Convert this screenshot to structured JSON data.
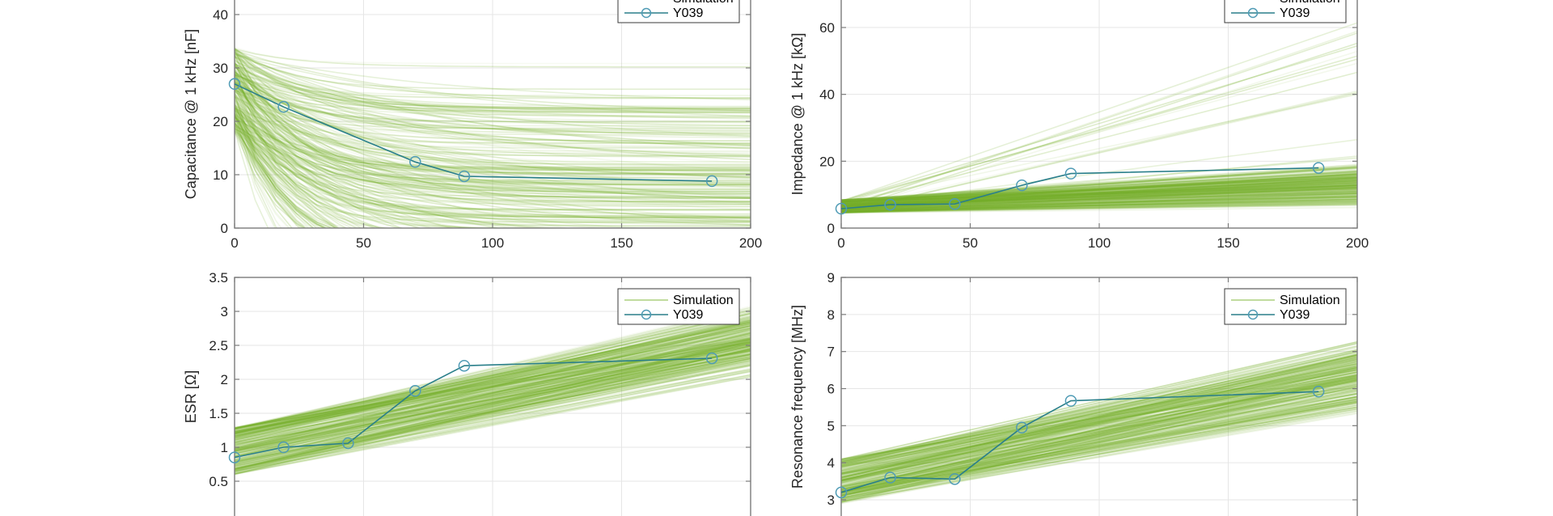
{
  "colors": {
    "simulation": "#77b02a",
    "measurement_line": "#2a7f8a",
    "measurement_marker": "#4f9bb5"
  },
  "legend": {
    "entries": [
      "Simulation",
      "Y039"
    ]
  },
  "chart_data": [
    {
      "id": "capacitance",
      "type": "line",
      "title": "",
      "xlabel": "",
      "ylabel": "Capacitance @ 1 kHz [nF]",
      "xlim": [
        0,
        200
      ],
      "ylim": [
        0,
        40
      ],
      "xticks": [
        0,
        50,
        100,
        150,
        200
      ],
      "yticks": [
        0,
        10,
        20,
        30,
        40
      ],
      "xtick_labels": [
        "0",
        "50",
        "100",
        "150",
        "200"
      ],
      "ytick_labels": [
        "0",
        "10",
        "20",
        "30",
        "40"
      ],
      "grid": true,
      "legend_position": "top-right",
      "simulation_band": {
        "start_range": [
          18,
          34
        ],
        "end_range": [
          -20,
          32
        ],
        "shape": "decay"
      },
      "series": [
        {
          "name": "Y039",
          "x": [
            0,
            19,
            70,
            89,
            185
          ],
          "y": [
            27,
            22.7,
            12.4,
            9.7,
            8.8
          ]
        }
      ]
    },
    {
      "id": "impedance",
      "type": "line",
      "title": "",
      "xlabel": "",
      "ylabel": "Impedance @ 1 kHz [kΩ]",
      "xlim": [
        0,
        200
      ],
      "ylim": [
        0,
        60
      ],
      "xticks": [
        0,
        50,
        100,
        150,
        200
      ],
      "yticks": [
        0,
        20,
        40,
        60
      ],
      "xtick_labels": [
        "0",
        "50",
        "100",
        "150",
        "200"
      ],
      "ytick_labels": [
        "0",
        "20",
        "40",
        "60"
      ],
      "grid": true,
      "legend_position": "top-right",
      "simulation_band": {
        "start_range": [
          4.5,
          8.5
        ],
        "end_range": [
          6,
          20
        ],
        "outlier_end_max": 62
      },
      "series": [
        {
          "name": "Y039",
          "x": [
            0,
            19,
            44,
            70,
            89,
            185
          ],
          "y": [
            5.8,
            7.0,
            7.2,
            12.8,
            16.3,
            18.0
          ]
        }
      ]
    },
    {
      "id": "esr",
      "type": "line",
      "title": "",
      "xlabel": "",
      "ylabel": "ESR [Ω]",
      "xlim": [
        0,
        200
      ],
      "ylim": [
        0.5,
        3.5
      ],
      "xticks": [
        0,
        50,
        100,
        150,
        200
      ],
      "yticks": [
        0.5,
        1,
        1.5,
        2,
        2.5,
        3,
        3.5
      ],
      "ytick_labels": [
        "0.5",
        "1",
        "1.5",
        "2",
        "2.5",
        "3",
        "3.5"
      ],
      "grid": true,
      "legend_position": "top-right",
      "simulation_band": {
        "start_range": [
          0.6,
          1.3
        ],
        "end_range": [
          2.0,
          3.1
        ]
      },
      "series": [
        {
          "name": "Y039",
          "x": [
            0,
            19,
            44,
            70,
            89,
            185
          ],
          "y": [
            0.85,
            1.0,
            1.06,
            1.83,
            2.2,
            2.31
          ]
        }
      ]
    },
    {
      "id": "resonance",
      "type": "line",
      "title": "",
      "xlabel": "",
      "ylabel": "Resonance frequency [MHz]",
      "xlim": [
        0,
        200
      ],
      "ylim": [
        3,
        9
      ],
      "xticks": [
        0,
        50,
        100,
        150,
        200
      ],
      "yticks": [
        3,
        4,
        5,
        6,
        7,
        8,
        9
      ],
      "ytick_labels": [
        "3",
        "4",
        "5",
        "6",
        "7",
        "8",
        "9"
      ],
      "grid": true,
      "legend_position": "top-right",
      "simulation_band": {
        "start_range": [
          2.9,
          4.1
        ],
        "end_range": [
          5.2,
          7.4
        ]
      },
      "series": [
        {
          "name": "Y039",
          "x": [
            0,
            19,
            44,
            70,
            89,
            185
          ],
          "y": [
            3.2,
            3.6,
            3.56,
            4.95,
            5.67,
            5.92
          ]
        }
      ]
    }
  ]
}
